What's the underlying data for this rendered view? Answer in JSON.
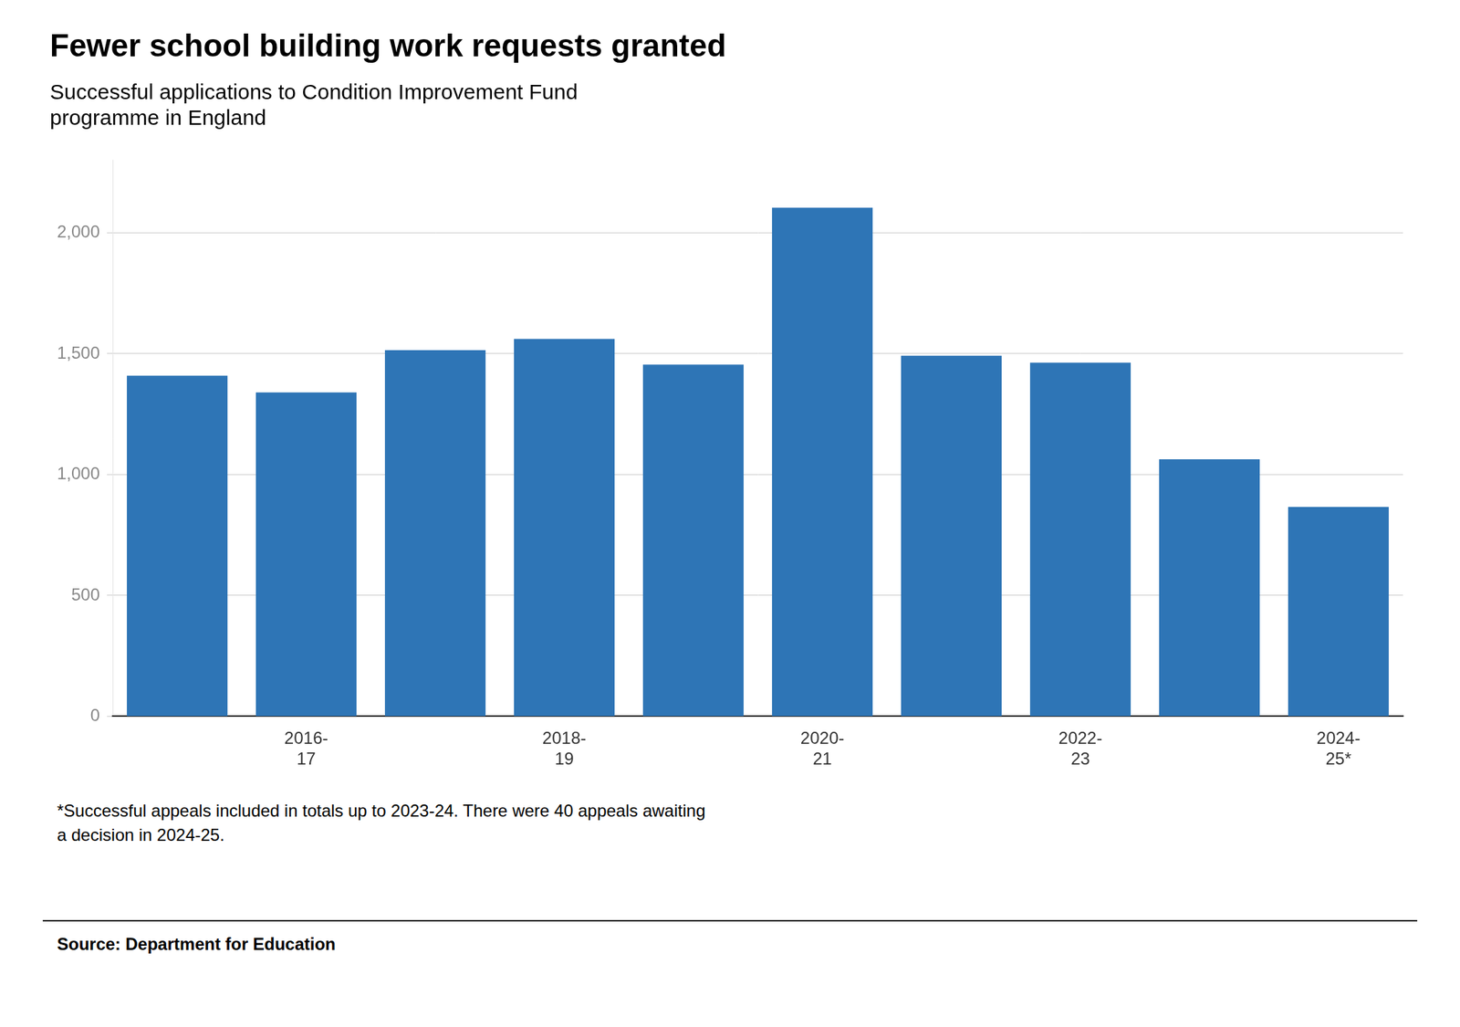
{
  "chart_data": {
    "type": "bar",
    "title": "Fewer school building work requests granted",
    "subtitle": "Successful applications to Condition Improvement Fund\nprogramme in England",
    "footnote": "*Successful appeals included in totals up to 2023-24. There were 40 appeals awaiting\na decision in 2024-25.",
    "source": "Source: Department for Education",
    "categories": [
      null,
      "2016-\n17",
      null,
      "2018-\n19",
      null,
      "2020-\n21",
      null,
      "2022-\n23",
      null,
      "2024-\n25*"
    ],
    "values": [
      1409,
      1340,
      1515,
      1561,
      1455,
      2104,
      1492,
      1463,
      1063,
      866
    ],
    "color": "#2e75b6",
    "ylim": [
      0,
      2300
    ],
    "yticks": [
      0,
      500,
      {
        "value": 1000,
        "label": "1,000"
      },
      {
        "value": 1500,
        "label": "1,500"
      },
      {
        "value": 2000,
        "label": "2,000"
      }
    ],
    "grid": true
  }
}
